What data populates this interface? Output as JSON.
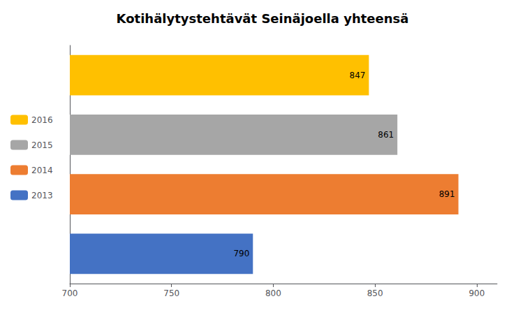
{
  "chart_data": {
    "type": "bar",
    "orientation": "horizontal",
    "title": "Kotihälytystehtävät Seinäjoella yhteensä",
    "categories": [
      "2013",
      "2014",
      "2015",
      "2016"
    ],
    "values": [
      790,
      891,
      861,
      847
    ],
    "colors": [
      "#4472C4",
      "#ED7D31",
      "#A6A6A6",
      "#FFC000"
    ],
    "xlim": [
      700,
      910
    ],
    "xticks": [
      700,
      750,
      800,
      850,
      900
    ],
    "data_labels": true,
    "tick_labels": "x",
    "grid": false,
    "legend": "left"
  }
}
